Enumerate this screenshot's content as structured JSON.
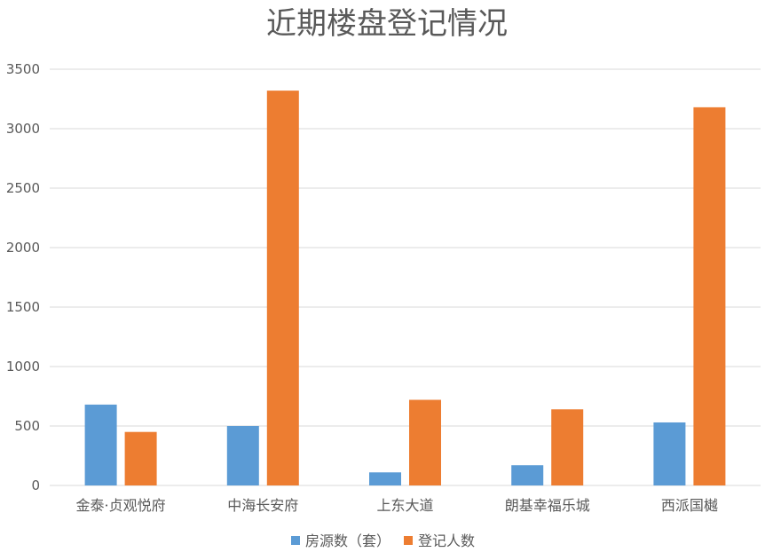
{
  "chart_data": {
    "type": "bar",
    "title": "近期楼盘登记情况",
    "categories": [
      "金泰·贞观悦府",
      "中海长安府",
      "上东大道",
      "朗基幸福乐城",
      "西派国樾"
    ],
    "series": [
      {
        "name": "房源数（套）",
        "color": "#5b9bd5",
        "values": [
          680,
          500,
          110,
          170,
          530
        ]
      },
      {
        "name": "登记人数",
        "color": "#ed7d31",
        "values": [
          450,
          3320,
          720,
          640,
          3180
        ]
      }
    ],
    "ylim": [
      0,
      3500
    ],
    "yticks": [
      "0",
      "500",
      "1000",
      "1500",
      "2000",
      "2500",
      "3000",
      "3500"
    ],
    "grid": true,
    "legend": "bottom"
  }
}
